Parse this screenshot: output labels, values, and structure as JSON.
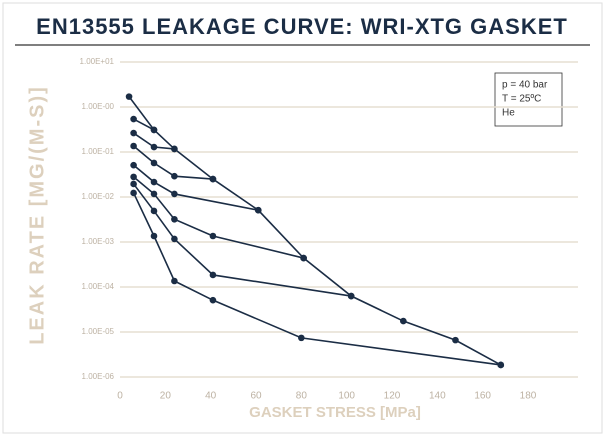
{
  "chart_data": {
    "type": "line",
    "title": "EN13555 LEAKAGE CURVE: WRI-XTG GASKET",
    "xlabel": "GASKET STRESS [MPa]",
    "ylabel": "LEAK RATE [MG/(M-S)]",
    "annotations": [
      "p = 40 bar",
      "T = 25ºC",
      "He"
    ],
    "log_y": true,
    "grid": true,
    "xlim": [
      0,
      180
    ],
    "xticks": [
      0,
      20,
      40,
      60,
      80,
      100,
      120,
      140,
      160,
      180
    ],
    "ylim": [
      1e-06,
      10
    ],
    "yticks": [
      {
        "value": 10,
        "label": "1.00E+01"
      },
      {
        "value": 1,
        "label": "1.00E-00"
      },
      {
        "value": 0.1,
        "label": "1.00E-01"
      },
      {
        "value": 0.01,
        "label": "1.00E-02"
      },
      {
        "value": 0.001,
        "label": "1.00E-03"
      },
      {
        "value": 0.0001,
        "label": "1.00E-04"
      },
      {
        "value": 1e-05,
        "label": "1.00E-05"
      },
      {
        "value": 1e-06,
        "label": "1.00E-06"
      }
    ],
    "series": [
      {
        "color": "#1b2d45",
        "x": [
          4,
          15,
          24,
          41,
          61,
          81,
          102,
          125,
          148,
          168
        ],
        "values": [
          1.7,
          0.31,
          0.117,
          0.025,
          0.0051,
          0.00044,
          6.3e-05,
          1.75e-05,
          6.6e-06,
          1.85e-06
        ]
      },
      {
        "color": "#1b2d45",
        "x": [
          15,
          6
        ],
        "values": [
          0.31,
          0.54
        ]
      },
      {
        "color": "#1b2d45",
        "x": [
          24,
          15,
          6
        ],
        "values": [
          0.117,
          0.129,
          0.264
        ]
      },
      {
        "color": "#1b2d45",
        "x": [
          41,
          24,
          15,
          6
        ],
        "values": [
          0.025,
          0.029,
          0.057,
          0.136
        ]
      },
      {
        "color": "#1b2d45",
        "x": [
          61,
          24,
          15,
          6
        ],
        "values": [
          0.0051,
          0.0117,
          0.0215,
          0.051
        ]
      },
      {
        "color": "#1b2d45",
        "x": [
          81,
          41,
          24,
          15,
          6
        ],
        "values": [
          0.00044,
          0.00136,
          0.0032,
          0.0117,
          0.028
        ]
      },
      {
        "color": "#1b2d45",
        "x": [
          102,
          41,
          24,
          15,
          6
        ],
        "values": [
          6.3e-05,
          0.000185,
          0.00117,
          0.0049,
          0.0195
        ]
      },
      {
        "color": "#1b2d45",
        "x": [
          168,
          80,
          41,
          24,
          15,
          6
        ],
        "values": [
          1.85e-06,
          7.4e-06,
          5.1e-05,
          0.000136,
          0.00136,
          0.0123
        ]
      }
    ]
  }
}
